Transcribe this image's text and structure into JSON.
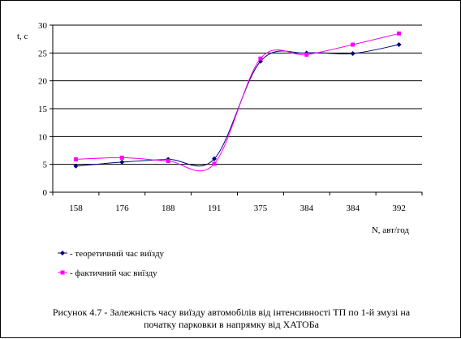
{
  "chart_data": {
    "type": "line",
    "categories": [
      "158",
      "176",
      "188",
      "191",
      "375",
      "384",
      "384",
      "392"
    ],
    "ylabel": "t, c",
    "xlabel": "N, авт/год",
    "ylim": [
      0,
      30
    ],
    "yticks": [
      0,
      5,
      10,
      15,
      20,
      25,
      30
    ],
    "grid": "horizontal",
    "legend_position": "bottom-left",
    "smoothed": true,
    "series": [
      {
        "name": "- теоретичний час виїзду",
        "values": [
          4.7,
          5.4,
          5.9,
          6.0,
          23.5,
          25.0,
          24.9,
          26.5
        ],
        "color": "#000080",
        "marker": "diamond"
      },
      {
        "name": "- фактичний час виїзду",
        "values": [
          5.9,
          6.2,
          5.6,
          5.1,
          24.0,
          24.7,
          26.5,
          28.5
        ],
        "color": "#ff00ff",
        "marker": "square"
      }
    ]
  },
  "caption": {
    "line1": "Рисунок 4.7 - Залежність часу виїзду автомобілів від інтенсивності ТП по 1-й змузі на",
    "line2": "початку парковки в напрямку від ХАТОБа"
  }
}
